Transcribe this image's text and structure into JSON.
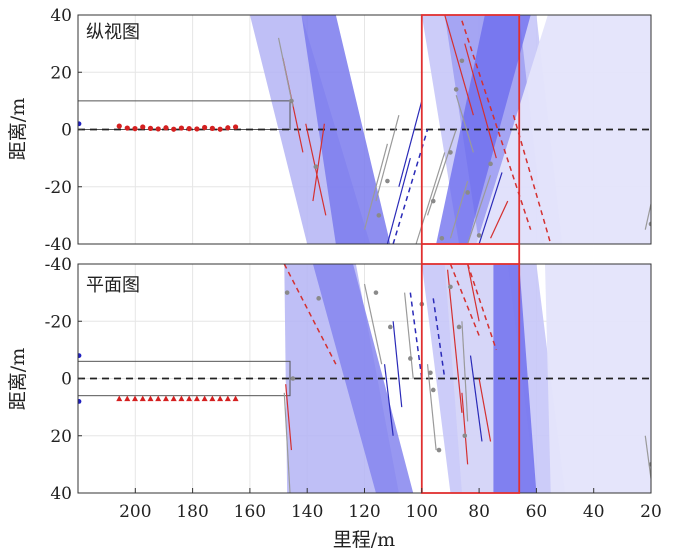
{
  "chart_data": {
    "type": "scatter",
    "xlabel": "里程/m",
    "ylabel": "距离/m",
    "xlim": [
      220,
      20
    ],
    "x_ticks": [
      "200",
      "180",
      "160",
      "140",
      "120",
      "100",
      "80",
      "60",
      "40",
      "20"
    ],
    "x_tick_values": [
      200,
      180,
      160,
      140,
      120,
      100,
      80,
      60,
      40,
      20
    ],
    "highlight_box": {
      "x_from": 100,
      "x_to": 66,
      "color": "#e03030"
    },
    "panels": [
      {
        "title": "纵视图",
        "ylim": [
          -40,
          40
        ],
        "y_direction": "up",
        "y_ticks": [
          "40",
          "20",
          "0",
          "-20",
          "-40"
        ],
        "y_tick_values": [
          40,
          20,
          0,
          -20,
          -40
        ],
        "grid": true,
        "tunnel_outline": {
          "x_from": 220,
          "x_to": 146,
          "top": 10,
          "bottom": 0
        },
        "points_red": [
          {
            "x": 205.6,
            "y": 1.2
          },
          {
            "x": 202.8,
            "y": 0.5
          },
          {
            "x": 200.1,
            "y": 0.3
          },
          {
            "x": 197.4,
            "y": 0.9
          },
          {
            "x": 194.7,
            "y": 0.4
          },
          {
            "x": 192.0,
            "y": 0.2
          },
          {
            "x": 189.3,
            "y": 0.6
          },
          {
            "x": 186.6,
            "y": 0.1
          },
          {
            "x": 183.9,
            "y": 0.5
          },
          {
            "x": 181.2,
            "y": 0.3
          },
          {
            "x": 178.5,
            "y": 0.2
          },
          {
            "x": 175.8,
            "y": 0.7
          },
          {
            "x": 173.1,
            "y": 0.4
          },
          {
            "x": 170.4,
            "y": 0.1
          },
          {
            "x": 167.7,
            "y": 0.6
          },
          {
            "x": 165.0,
            "y": 0.9
          }
        ],
        "points_blue": [
          {
            "x": 220,
            "y": 2
          }
        ],
        "bands": [
          {
            "color": "#b4b4f5",
            "opacity": 0.85,
            "top": [
              160,
              142
            ],
            "bottom": [
              140,
              118
            ]
          },
          {
            "color": "#7a7aed",
            "opacity": 0.85,
            "top": [
              142,
              130
            ],
            "bottom": [
              130,
              111
            ]
          },
          {
            "color": "#c6c6f8",
            "opacity": 0.9,
            "top": [
              100,
              60
            ],
            "bottom": [
              87,
              51
            ]
          },
          {
            "color": "#9d9df2",
            "opacity": 0.85,
            "top": [
              92,
              66
            ],
            "bottom": [
              80,
              57
            ]
          },
          {
            "color": "#6a6aee",
            "opacity": 0.75,
            "top": [
              78,
              62
            ],
            "bottom": [
              95,
              84
            ]
          },
          {
            "color": "#e4e4fb",
            "opacity": 0.95,
            "top": [
              56,
              20
            ],
            "bottom": [
              81,
              20
            ]
          }
        ],
        "fracture_lines": [
          {
            "c": "#d43030",
            "x1": 148.5,
            "y1": 25,
            "x2": 141.5,
            "y2": -8
          },
          {
            "c": "#d43030",
            "x1": 140.5,
            "y1": 2,
            "x2": 133.5,
            "y2": -30
          },
          {
            "c": "#d43030",
            "x1": 138,
            "y1": -25,
            "x2": 134,
            "y2": 2
          },
          {
            "c": "#d43030",
            "x1": 92,
            "y1": 40,
            "x2": 82,
            "y2": 5
          },
          {
            "c": "#d43030",
            "x1": 85,
            "y1": 30,
            "x2": 74,
            "y2": -10
          },
          {
            "c": "#d43030",
            "x1": 76,
            "y1": -38,
            "x2": 70,
            "y2": -25
          },
          {
            "c": "#2a2ab8",
            "x1": 108,
            "y1": -20,
            "x2": 100,
            "y2": 10
          },
          {
            "c": "#2a2ab8",
            "x1": 112,
            "y1": -40,
            "x2": 104,
            "y2": -10
          },
          {
            "c": "#2a2ab8",
            "x1": 80,
            "y1": -40,
            "x2": 72,
            "y2": -15
          },
          {
            "c": "#9a9a9a",
            "x1": 150,
            "y1": 32,
            "x2": 145,
            "y2": 8
          },
          {
            "c": "#9a9a9a",
            "x1": 120,
            "y1": -35,
            "x2": 112,
            "y2": -5
          },
          {
            "c": "#9a9a9a",
            "x1": 116,
            "y1": -25,
            "x2": 108,
            "y2": 5
          },
          {
            "c": "#9a9a9a",
            "x1": 102,
            "y1": -40,
            "x2": 92,
            "y2": -8
          },
          {
            "c": "#9a9a9a",
            "x1": 98,
            "y1": -30,
            "x2": 88,
            "y2": 0
          },
          {
            "c": "#9a9a9a",
            "x1": 90,
            "y1": -38,
            "x2": 84,
            "y2": -18
          },
          {
            "c": "#9a9a9a",
            "x1": 88,
            "y1": 12,
            "x2": 82,
            "y2": -8
          },
          {
            "c": "#9a9a9a",
            "x1": 84,
            "y1": -40,
            "x2": 76,
            "y2": -16
          },
          {
            "c": "#9a9a9a",
            "x1": 22,
            "y1": -35,
            "x2": 20,
            "y2": -26
          }
        ],
        "dashed_lines": [
          {
            "c": "#d43030",
            "x1": 86,
            "y1": 38,
            "x2": 62,
            "y2": -35
          },
          {
            "c": "#d43030",
            "x1": 68,
            "y1": 5,
            "x2": 55,
            "y2": -40
          },
          {
            "c": "#2a2ab8",
            "x1": 110,
            "y1": -40,
            "x2": 98,
            "y2": 0
          }
        ],
        "scatter_gray": [
          {
            "x": 145.5,
            "y": 10
          },
          {
            "x": 137,
            "y": -13
          },
          {
            "x": 115,
            "y": -30
          },
          {
            "x": 112,
            "y": -18
          },
          {
            "x": 96,
            "y": -25
          },
          {
            "x": 93,
            "y": -38
          },
          {
            "x": 90,
            "y": -8
          },
          {
            "x": 86,
            "y": 24
          },
          {
            "x": 88,
            "y": 14
          },
          {
            "x": 84,
            "y": -22
          },
          {
            "x": 80,
            "y": -37
          },
          {
            "x": 76,
            "y": -12
          },
          {
            "x": 20,
            "y": -33
          }
        ]
      },
      {
        "title": "平面图",
        "ylim": [
          -40,
          40
        ],
        "y_direction": "down",
        "y_ticks": [
          "-40",
          "-20",
          "0",
          "20",
          "40"
        ],
        "y_tick_values": [
          -40,
          -20,
          0,
          20,
          40
        ],
        "grid": true,
        "tunnel_outline": {
          "x_from": 220,
          "x_to": 146,
          "top": -6,
          "bottom": 6
        },
        "points_red": [
          {
            "x": 205.6,
            "y": 7
          },
          {
            "x": 202.8,
            "y": 7
          },
          {
            "x": 200.1,
            "y": 7
          },
          {
            "x": 197.4,
            "y": 7
          },
          {
            "x": 194.7,
            "y": 7
          },
          {
            "x": 192.0,
            "y": 7
          },
          {
            "x": 189.3,
            "y": 7
          },
          {
            "x": 186.6,
            "y": 7
          },
          {
            "x": 183.9,
            "y": 7
          },
          {
            "x": 181.2,
            "y": 7
          },
          {
            "x": 178.5,
            "y": 7
          },
          {
            "x": 175.8,
            "y": 7
          },
          {
            "x": 173.1,
            "y": 7
          },
          {
            "x": 170.4,
            "y": 7
          },
          {
            "x": 167.7,
            "y": 7
          },
          {
            "x": 165.0,
            "y": 7
          }
        ],
        "points_blue": [
          {
            "x": 220,
            "y": -8
          },
          {
            "x": 220,
            "y": 8
          }
        ],
        "bands": [
          {
            "color": "#b4b4f5",
            "opacity": 0.85,
            "top": [
              148,
              123
            ],
            "bottom": [
              147,
              108
            ]
          },
          {
            "color": "#8585ee",
            "opacity": 0.85,
            "top": [
              138,
              124
            ],
            "bottom": [
              116,
              103
            ]
          },
          {
            "color": "#c6c6f8",
            "opacity": 0.9,
            "top": [
              100,
              60
            ],
            "bottom": [
              90,
              50
            ]
          },
          {
            "color": "#d7d7f8",
            "opacity": 0.85,
            "top": [
              92,
              70
            ],
            "bottom": [
              86,
              60
            ]
          },
          {
            "color": "#6a6aee",
            "opacity": 0.8,
            "top": [
              75,
              66
            ],
            "bottom": [
              75,
              60
            ]
          },
          {
            "color": "#e4e4fb",
            "opacity": 0.95,
            "top": [
              57,
              20
            ],
            "bottom": [
              55,
              20
            ]
          }
        ],
        "fracture_lines": [
          {
            "c": "#d43030",
            "x1": 147.5,
            "y1": 2,
            "x2": 145.5,
            "y2": 25
          },
          {
            "c": "#d43030",
            "x1": 91,
            "y1": -38,
            "x2": 86,
            "y2": 12
          },
          {
            "c": "#d43030",
            "x1": 86,
            "y1": 5,
            "x2": 84,
            "y2": 30
          },
          {
            "c": "#d43030",
            "x1": 84,
            "y1": -40,
            "x2": 80,
            "y2": -20
          },
          {
            "c": "#d43030",
            "x1": 80,
            "y1": 0,
            "x2": 76,
            "y2": 22
          },
          {
            "c": "#2a2ab8",
            "x1": 113,
            "y1": -5,
            "x2": 110,
            "y2": 20
          },
          {
            "c": "#2a2ab8",
            "x1": 110,
            "y1": -20,
            "x2": 107,
            "y2": 10
          },
          {
            "c": "#2a2ab8",
            "x1": 83,
            "y1": -8,
            "x2": 79,
            "y2": 22
          },
          {
            "c": "#9a9a9a",
            "x1": 148,
            "y1": 5,
            "x2": 146,
            "y2": 40
          },
          {
            "c": "#9a9a9a",
            "x1": 120,
            "y1": -33,
            "x2": 114,
            "y2": -5
          },
          {
            "c": "#9a9a9a",
            "x1": 106,
            "y1": -30,
            "x2": 103,
            "y2": 0
          },
          {
            "c": "#9a9a9a",
            "x1": 98,
            "y1": -5,
            "x2": 95,
            "y2": 25
          },
          {
            "c": "#9a9a9a",
            "x1": 86,
            "y1": -20,
            "x2": 84,
            "y2": 15
          },
          {
            "c": "#9a9a9a",
            "x1": 22,
            "y1": 20,
            "x2": 20,
            "y2": 35
          }
        ],
        "dashed_lines": [
          {
            "c": "#d43030",
            "x1": 148,
            "y1": -40,
            "x2": 130,
            "y2": -5
          },
          {
            "c": "#d43030",
            "x1": 90,
            "y1": -40,
            "x2": 80,
            "y2": -15
          },
          {
            "c": "#d43030",
            "x1": 84,
            "y1": -40,
            "x2": 74,
            "y2": -10
          },
          {
            "c": "#2a2ab8",
            "x1": 104,
            "y1": -30,
            "x2": 100,
            "y2": 0
          },
          {
            "c": "#2a2ab8",
            "x1": 96,
            "y1": -28,
            "x2": 92,
            "y2": 0
          }
        ],
        "scatter_gray": [
          {
            "x": 147,
            "y": -30
          },
          {
            "x": 145,
            "y": 0
          },
          {
            "x": 136,
            "y": -28
          },
          {
            "x": 116,
            "y": -30
          },
          {
            "x": 111,
            "y": -18
          },
          {
            "x": 104,
            "y": -7
          },
          {
            "x": 100,
            "y": -26
          },
          {
            "x": 97,
            "y": -2
          },
          {
            "x": 96,
            "y": 4
          },
          {
            "x": 94,
            "y": 25
          },
          {
            "x": 90,
            "y": -32
          },
          {
            "x": 87,
            "y": -18
          },
          {
            "x": 85,
            "y": 20
          },
          {
            "x": 20,
            "y": 30
          }
        ]
      }
    ]
  }
}
